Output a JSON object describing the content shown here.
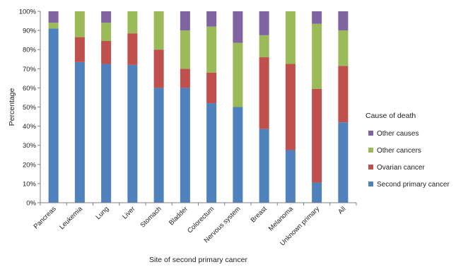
{
  "chart_data": {
    "type": "bar",
    "stacked": true,
    "percent": true,
    "title": "",
    "xlabel": "Site of second primary cancer",
    "ylabel": "Percentage",
    "ylim": [
      0,
      100
    ],
    "yticks": [
      "0%",
      "10%",
      "20%",
      "30%",
      "40%",
      "50%",
      "60%",
      "70%",
      "80%",
      "90%",
      "100%"
    ],
    "categories": [
      "Pancreas",
      "Leukemia",
      "Lung",
      "Liver",
      "Stomach",
      "Bladder",
      "Colorectum",
      "Nervous system",
      "Breast",
      "Melanoma",
      "Unknown primary",
      "All"
    ],
    "legend": {
      "title": "Cause of death",
      "position": "right",
      "order": [
        "Other causes",
        "Other cancers",
        "Ovarian cancer",
        "Second primary cancer"
      ]
    },
    "series": [
      {
        "name": "Second primary cancer",
        "color": "#4f81bd",
        "values": [
          91,
          73.5,
          72.5,
          72,
          60,
          60,
          52,
          50,
          38.5,
          27.5,
          10.5,
          42
        ]
      },
      {
        "name": "Ovarian cancer",
        "color": "#c0504d",
        "values": [
          0,
          13,
          12,
          16.5,
          20,
          10,
          16,
          0,
          37.5,
          45,
          49,
          29.5
        ]
      },
      {
        "name": "Other cancers",
        "color": "#9bbb59",
        "values": [
          3,
          13.5,
          9.5,
          11.5,
          20,
          20,
          24,
          33.5,
          11.5,
          27.5,
          34,
          18.5
        ]
      },
      {
        "name": "Other causes",
        "color": "#8064a2",
        "values": [
          6,
          0,
          6,
          0,
          0,
          10,
          8,
          16.5,
          12.5,
          0,
          6.5,
          10
        ]
      }
    ],
    "grid": false
  }
}
